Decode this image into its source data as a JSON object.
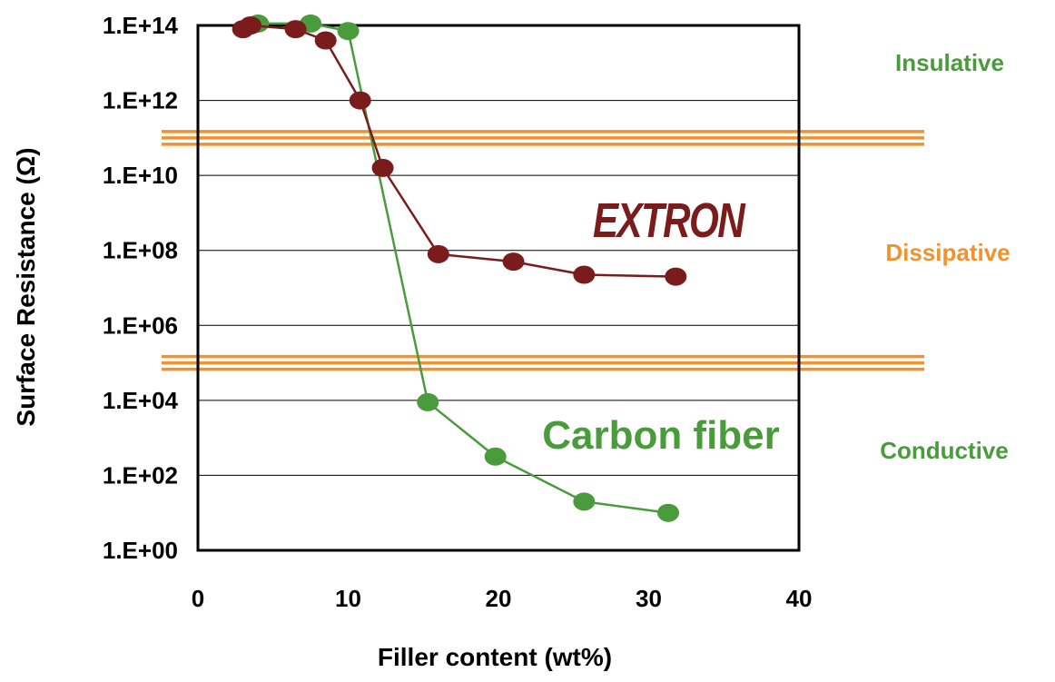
{
  "chart_data": {
    "type": "scatter",
    "xlabel": "Filler content (wt%)",
    "ylabel": "Surface Resistance (Ω)",
    "xlim": [
      0,
      40
    ],
    "x_ticks": [
      "0",
      "10",
      "20",
      "30",
      "40"
    ],
    "y_log_scale": true,
    "ylim_exponent": [
      0,
      14
    ],
    "y_ticks": [
      "1.E+00",
      "1.E+02",
      "1.E+04",
      "1.E+06",
      "1.E+08",
      "1.E+10",
      "1.E+12",
      "1.E+14"
    ],
    "grid": true,
    "series": [
      {
        "name": "Carbon fiber",
        "color": "#4a9b3c",
        "x": [
          4,
          7.5,
          10,
          15.3,
          19.8,
          25.7,
          31.3
        ],
        "log10_y": [
          14.05,
          14.05,
          13.85,
          3.95,
          2.5,
          1.3,
          1.0
        ]
      },
      {
        "name": "EXTRON",
        "color": "#7a1c1c",
        "x": [
          3,
          3.5,
          6.5,
          8.5,
          10.8,
          12.3,
          16,
          21,
          25.7,
          31.8
        ],
        "log10_y": [
          13.9,
          14.0,
          13.9,
          13.6,
          12.0,
          10.2,
          7.9,
          7.7,
          7.35,
          7.3
        ]
      }
    ],
    "thresholds": [
      {
        "log10_y": 11.0,
        "color": "#f0922e"
      },
      {
        "log10_y": 5.0,
        "color": "#f0922e"
      }
    ],
    "zones": [
      {
        "label": "Insulative",
        "color": "#4a9b3c"
      },
      {
        "label": "Dissipative",
        "color": "#f0922e"
      },
      {
        "label": "Conductive",
        "color": "#4a9b3c"
      }
    ]
  }
}
